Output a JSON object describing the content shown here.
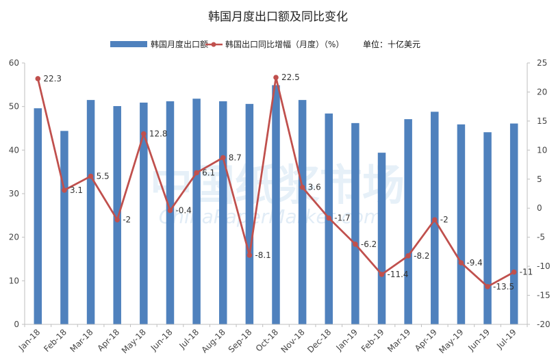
{
  "chart_data": {
    "type": "bar+line",
    "title": "韩国月度出口额及同比变化",
    "unit_note": "单位：十亿美元",
    "watermark": {
      "cn": "中国纸浆市场",
      "en": "ChinaPaperMarket.com"
    },
    "categories": [
      "Jan-18",
      "Feb-18",
      "Mar-18",
      "Apr-18",
      "May-18",
      "Jun-18",
      "Jul-18",
      "Aug-18",
      "Sep-18",
      "Oct-18",
      "Nov-18",
      "Dec-18",
      "Jan-19",
      "Feb-19",
      "Mar-19",
      "Apr-19",
      "May-19",
      "Jun-19",
      "Jul-19"
    ],
    "series": [
      {
        "name": "韩国月度出口额",
        "kind": "bar",
        "axis": "left",
        "color": "#4f81bd",
        "values": [
          49.6,
          44.4,
          51.5,
          50.1,
          50.9,
          51.2,
          51.8,
          51.2,
          50.6,
          54.9,
          51.5,
          48.4,
          46.2,
          39.4,
          47.1,
          48.8,
          45.9,
          44.1,
          46.1
        ]
      },
      {
        "name": "韩国出口同比增幅（月度）（%）",
        "kind": "line",
        "axis": "right",
        "color": "#c0504d",
        "values": [
          22.3,
          3.1,
          5.5,
          -2,
          12.8,
          -0.4,
          6.1,
          8.7,
          -8.1,
          22.5,
          3.6,
          -1.7,
          -6.2,
          -11.4,
          -8.2,
          -2,
          -9.4,
          -13.5,
          -11
        ],
        "labels": [
          "22.3",
          "3.1",
          "5.5",
          "-2",
          "12.8",
          "-0.4",
          "6.1",
          "8.7",
          "-8.1",
          "22.5",
          "3.6",
          "-1.7",
          "-6.2",
          "-11.4",
          "-8.2",
          "-2",
          "-9.4",
          "-13.5",
          "-11"
        ]
      }
    ],
    "y_left": {
      "min": 0,
      "max": 60,
      "step": 10,
      "ticks": [
        "0",
        "10",
        "20",
        "30",
        "40",
        "50",
        "60"
      ]
    },
    "y_right": {
      "min": -20,
      "max": 25,
      "step": 5,
      "ticks": [
        "-20",
        "-15",
        "-10",
        "-5",
        "0",
        "5",
        "10",
        "15",
        "20",
        "25"
      ]
    },
    "grid": false,
    "legend_position": "top"
  }
}
